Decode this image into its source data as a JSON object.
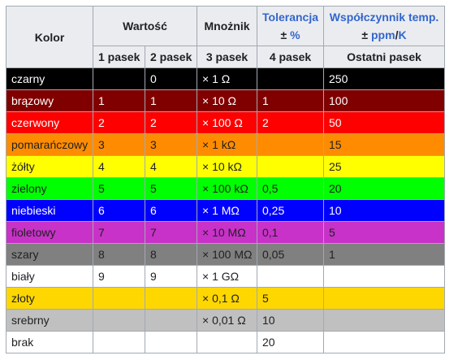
{
  "header": {
    "kolor": "Kolor",
    "wartosc": "Wartość",
    "mnoznik": "Mnożnik",
    "tolerancja_line1": "Tolerancja",
    "tolerancja_pm": "± ",
    "tolerancja_unit": "%",
    "wspolczynnik_line1": "Współczynnik temp.",
    "wspolczynnik_pm": "± ",
    "wspolczynnik_ppm": "ppm",
    "wspolczynnik_slash": "/",
    "wspolczynnik_k": "K",
    "pasek1": "1 pasek",
    "pasek2": "2 pasek",
    "pasek3": "3 pasek",
    "pasek4": "4 pasek",
    "ostatni": "Ostatni pasek"
  },
  "rows": [
    {
      "name": "czarny",
      "bg": "#000000",
      "fg": "#ffffff",
      "p1": "",
      "p2": "0",
      "mult": "× 1 Ω",
      "tol": "",
      "tc": "250"
    },
    {
      "name": "brązowy",
      "bg": "#800000",
      "fg": "#ffffff",
      "p1": "1",
      "p2": "1",
      "mult": "× 10 Ω",
      "tol": "1",
      "tc": "100"
    },
    {
      "name": "czerwony",
      "bg": "#ff0000",
      "fg": "#ffffff",
      "p1": "2",
      "p2": "2",
      "mult": "× 100 Ω",
      "tol": "2",
      "tc": "50"
    },
    {
      "name": "pomarańczowy",
      "bg": "#ff8c00",
      "fg": "#202122",
      "p1": "3",
      "p2": "3",
      "mult": "× 1 kΩ",
      "tol": "",
      "tc": "15"
    },
    {
      "name": "żółty",
      "bg": "#ffff00",
      "fg": "#202122",
      "p1": "4",
      "p2": "4",
      "mult": "× 10 kΩ",
      "tol": "",
      "tc": "25"
    },
    {
      "name": "zielony",
      "bg": "#00ff00",
      "fg": "#202122",
      "p1": "5",
      "p2": "5",
      "mult": "× 100 kΩ",
      "tol": "0,5",
      "tc": "20"
    },
    {
      "name": "niebieski",
      "bg": "#0000ff",
      "fg": "#ffffff",
      "p1": "6",
      "p2": "6",
      "mult": "× 1 MΩ",
      "tol": "0,25",
      "tc": "10"
    },
    {
      "name": "fioletowy",
      "bg": "#c832c8",
      "fg": "#202122",
      "p1": "7",
      "p2": "7",
      "mult": "× 10 MΩ",
      "tol": "0,1",
      "tc": "5"
    },
    {
      "name": "szary",
      "bg": "#808080",
      "fg": "#202122",
      "p1": "8",
      "p2": "8",
      "mult": "× 100 MΩ",
      "tol": "0,05",
      "tc": "1"
    },
    {
      "name": "biały",
      "bg": "#ffffff",
      "fg": "#202122",
      "p1": "9",
      "p2": "9",
      "mult": "× 1 GΩ",
      "tol": "",
      "tc": ""
    },
    {
      "name": "złoty",
      "bg": "#ffd700",
      "fg": "#202122",
      "p1": "",
      "p2": "",
      "mult": "× 0,1 Ω",
      "tol": "5",
      "tc": ""
    },
    {
      "name": "srebrny",
      "bg": "#c0c0c0",
      "fg": "#202122",
      "p1": "",
      "p2": "",
      "mult": "× 0,01 Ω",
      "tol": "10",
      "tc": ""
    },
    {
      "name": "brak",
      "bg": "#ffffff",
      "fg": "#202122",
      "p1": "",
      "p2": "",
      "mult": "",
      "tol": "20",
      "tc": ""
    }
  ]
}
